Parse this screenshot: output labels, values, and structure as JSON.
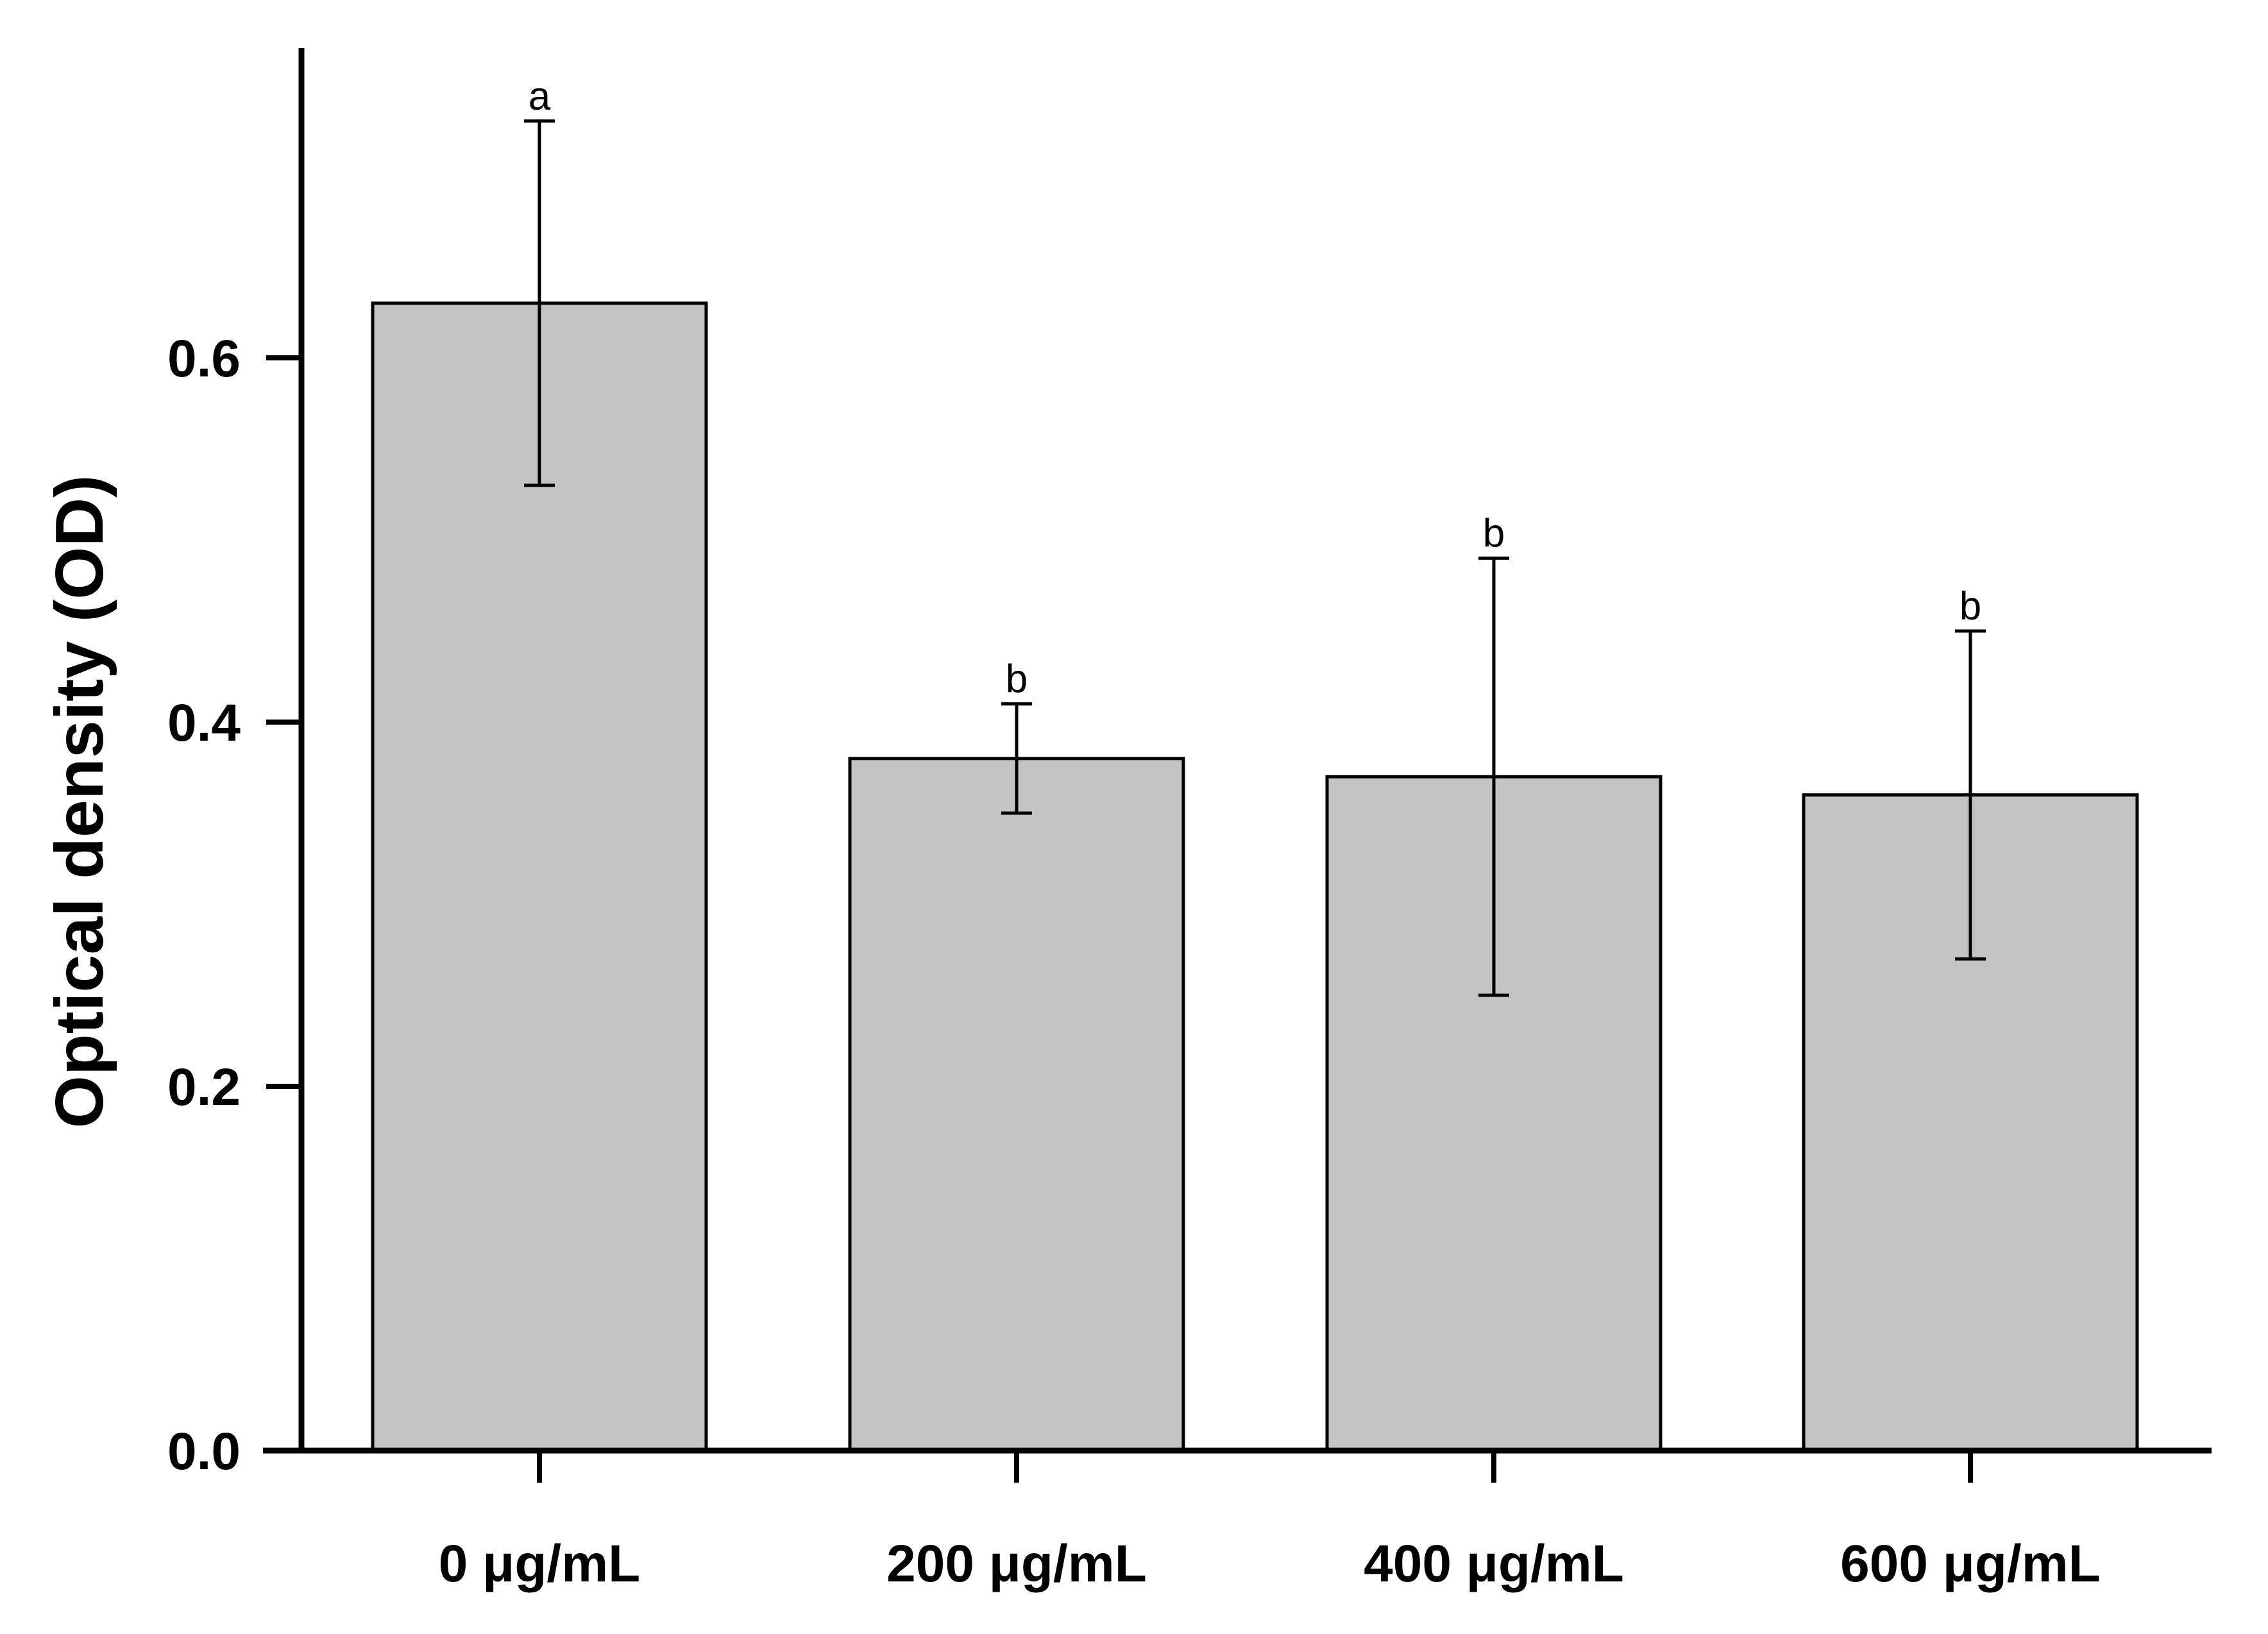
{
  "chart_data": {
    "type": "bar",
    "title": "",
    "xlabel": "",
    "ylabel": "Optical density (OD)",
    "categories": [
      "0 μg/mL",
      "200 μg/mL",
      "400 μg/mL",
      "600 μg/mL"
    ],
    "values": [
      0.63,
      0.38,
      0.37,
      0.36
    ],
    "error_low": [
      0.53,
      0.35,
      0.25,
      0.27
    ],
    "error_high": [
      0.73,
      0.41,
      0.49,
      0.45
    ],
    "significance_letters": [
      "a",
      "b",
      "b",
      "b"
    ],
    "ylim": [
      0,
      0.77
    ],
    "yticks": [
      0.0,
      0.2,
      0.4,
      0.6
    ],
    "ytick_labels": [
      "0.0",
      "0.2",
      "0.4",
      "0.6"
    ],
    "grid": false,
    "legend": "none",
    "bar_color": "#c4c4c4",
    "bar_edge_color": "#000000"
  }
}
